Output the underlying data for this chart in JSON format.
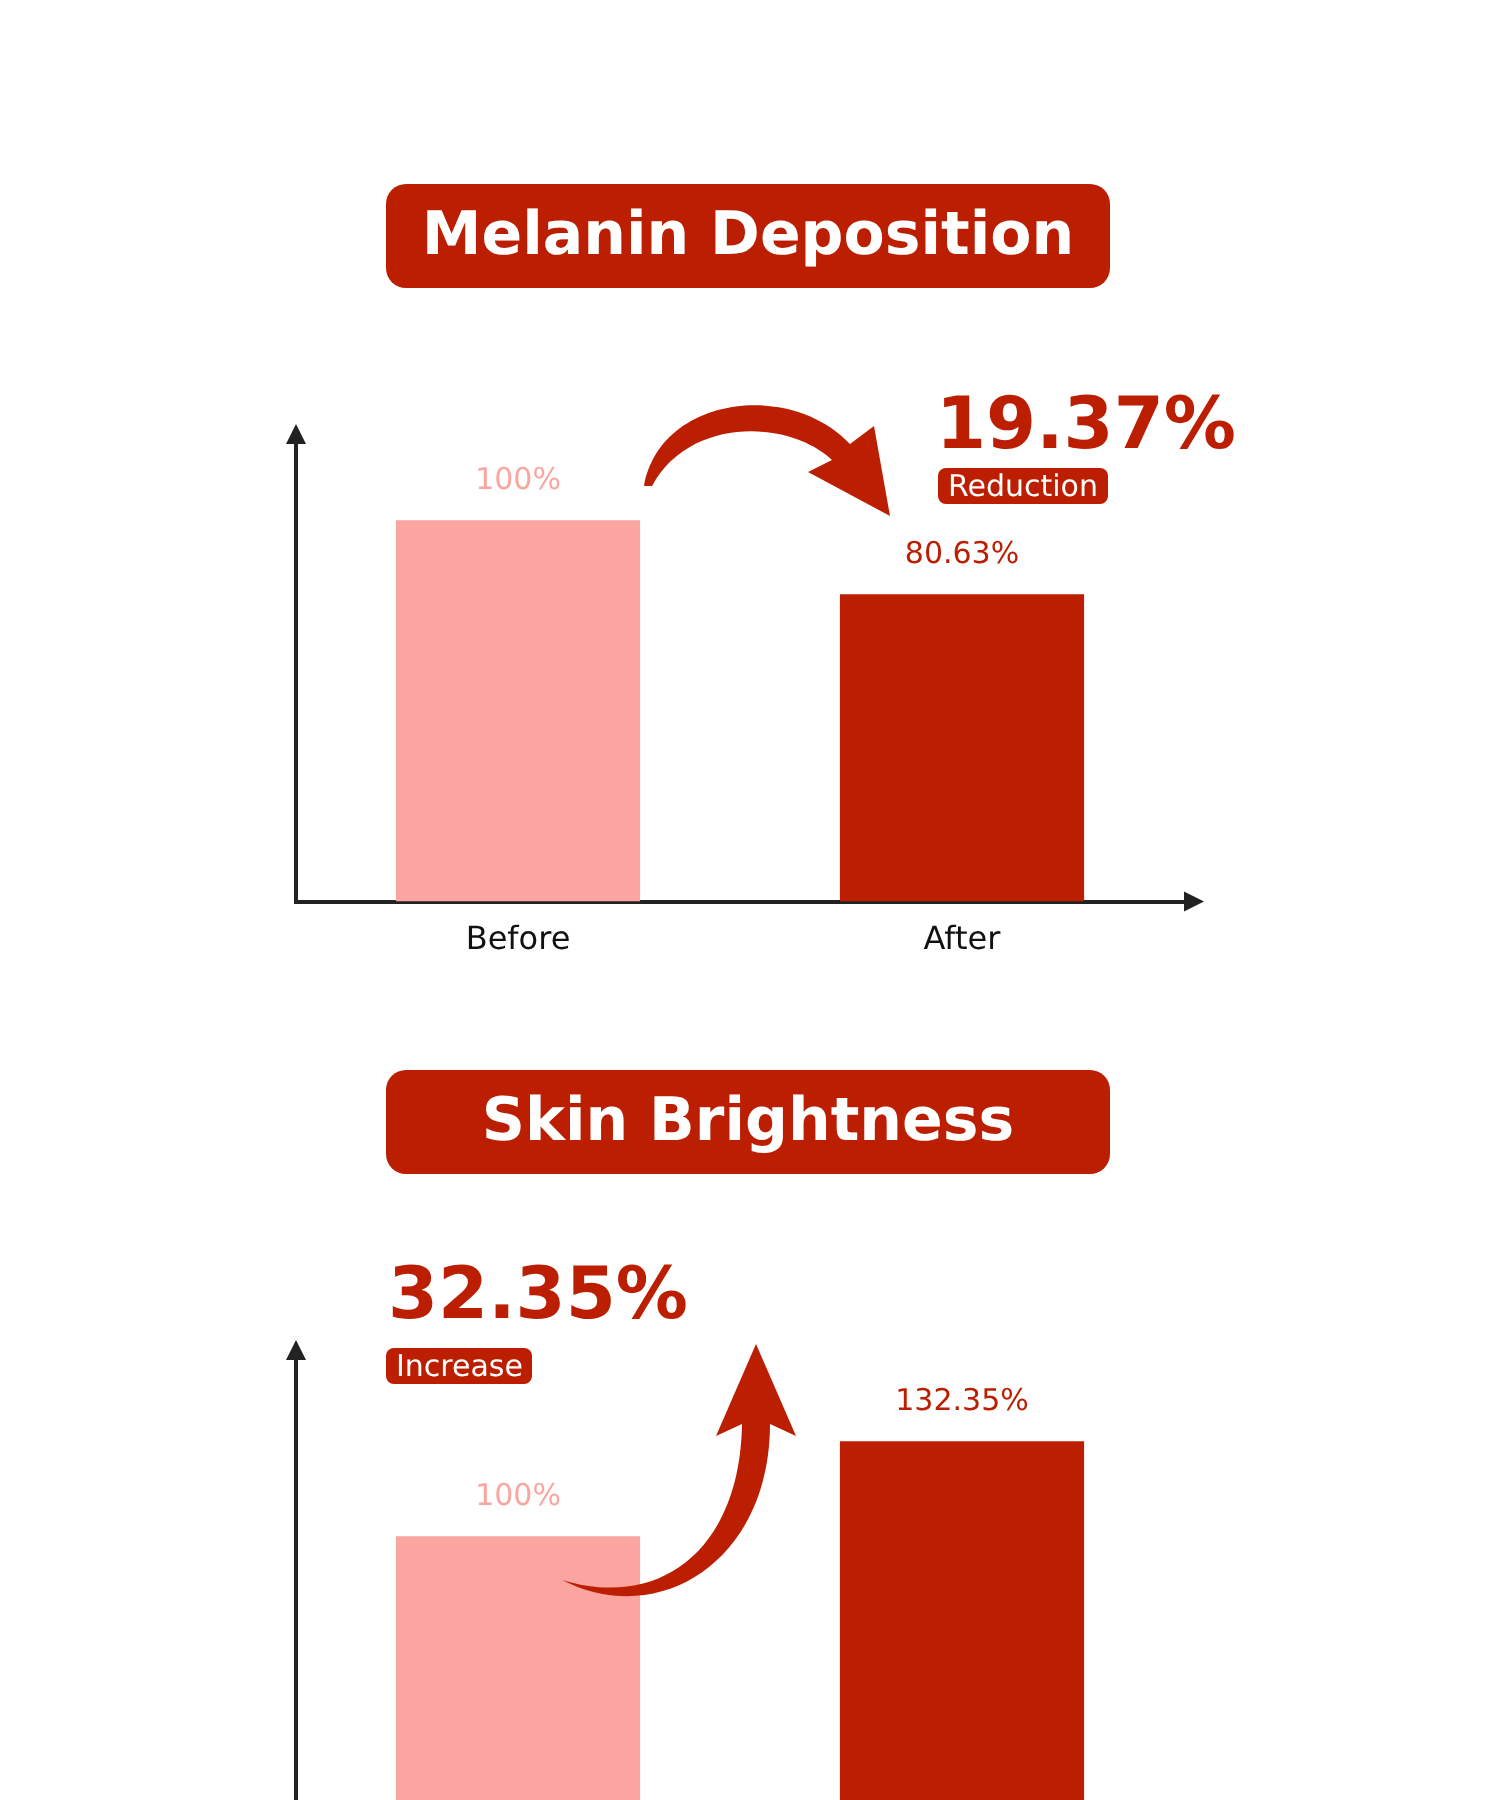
{
  "chart_data": [
    {
      "type": "bar",
      "title": "Melanin Deposition",
      "categories": [
        "Before",
        "After"
      ],
      "values": [
        100,
        80.63
      ],
      "colors": [
        "#fba5a0",
        "#bb1e00"
      ],
      "value_labels": [
        "100%",
        "80.63%"
      ],
      "tick_labels": "x",
      "legend": false,
      "grid": false,
      "annotations": [
        "19.37%",
        "Reduction"
      ]
    },
    {
      "type": "bar",
      "title": "Skin Brightness",
      "categories": [
        null,
        null
      ],
      "values": [
        100,
        132.35
      ],
      "colors": [
        "#fba5a0",
        "#bb1e00"
      ],
      "value_labels": [
        "100%",
        "132.35%"
      ],
      "tick_labels": false,
      "legend": false,
      "grid": false,
      "annotations": [
        "32.35%",
        "Increase"
      ]
    }
  ]
}
